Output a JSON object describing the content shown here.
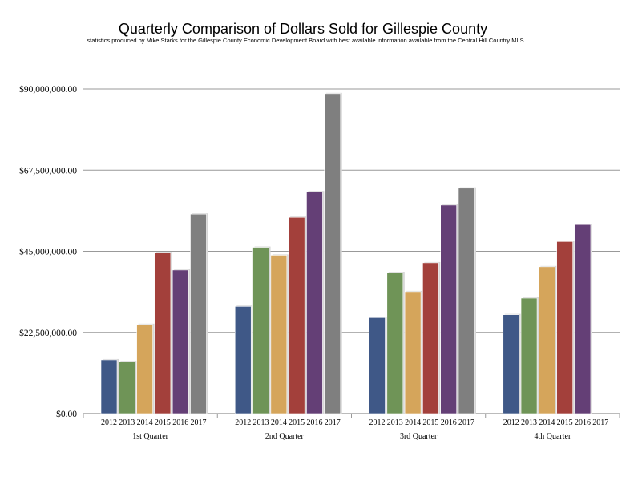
{
  "chart_data": {
    "type": "bar",
    "title": "Quarterly Comparison of Dollars Sold for Gillespie County",
    "subtitle": "statistics produced by Mike Starks for the Gillespie County Economic Development Board with best available information available from the Central Hill Country MLS",
    "categories": [
      "1st Quarter",
      "2nd Quarter",
      "3rd Quarter",
      "4th Quarter"
    ],
    "y_tick_labels": [
      "$0.00",
      "$22,500,000.00",
      "$45,000,000.00",
      "$67,500,000.00",
      "$90,000,000.00"
    ],
    "y_ticks": [
      0,
      22500000,
      45000000,
      67500000,
      90000000
    ],
    "ylim": [
      0,
      90000000
    ],
    "grid": true,
    "legend": "none",
    "series": [
      {
        "label": "2012",
        "color": "#3f5887",
        "values": [
          14900000,
          29700000,
          26600000,
          27400000
        ]
      },
      {
        "label": "2013",
        "color": "#6f9457",
        "values": [
          14400000,
          46100000,
          39100000,
          32000000
        ]
      },
      {
        "label": "2014",
        "color": "#d5a55b",
        "values": [
          24700000,
          43900000,
          33800000,
          40700000
        ]
      },
      {
        "label": "2015",
        "color": "#a3403b",
        "values": [
          44600000,
          54400000,
          41800000,
          47700000
        ]
      },
      {
        "label": "2016",
        "color": "#643f76",
        "values": [
          39800000,
          61500000,
          57800000,
          52400000
        ]
      },
      {
        "label": "2017",
        "color": "#7f7f7f",
        "values": [
          55300000,
          88700000,
          62500000,
          null
        ]
      }
    ]
  }
}
